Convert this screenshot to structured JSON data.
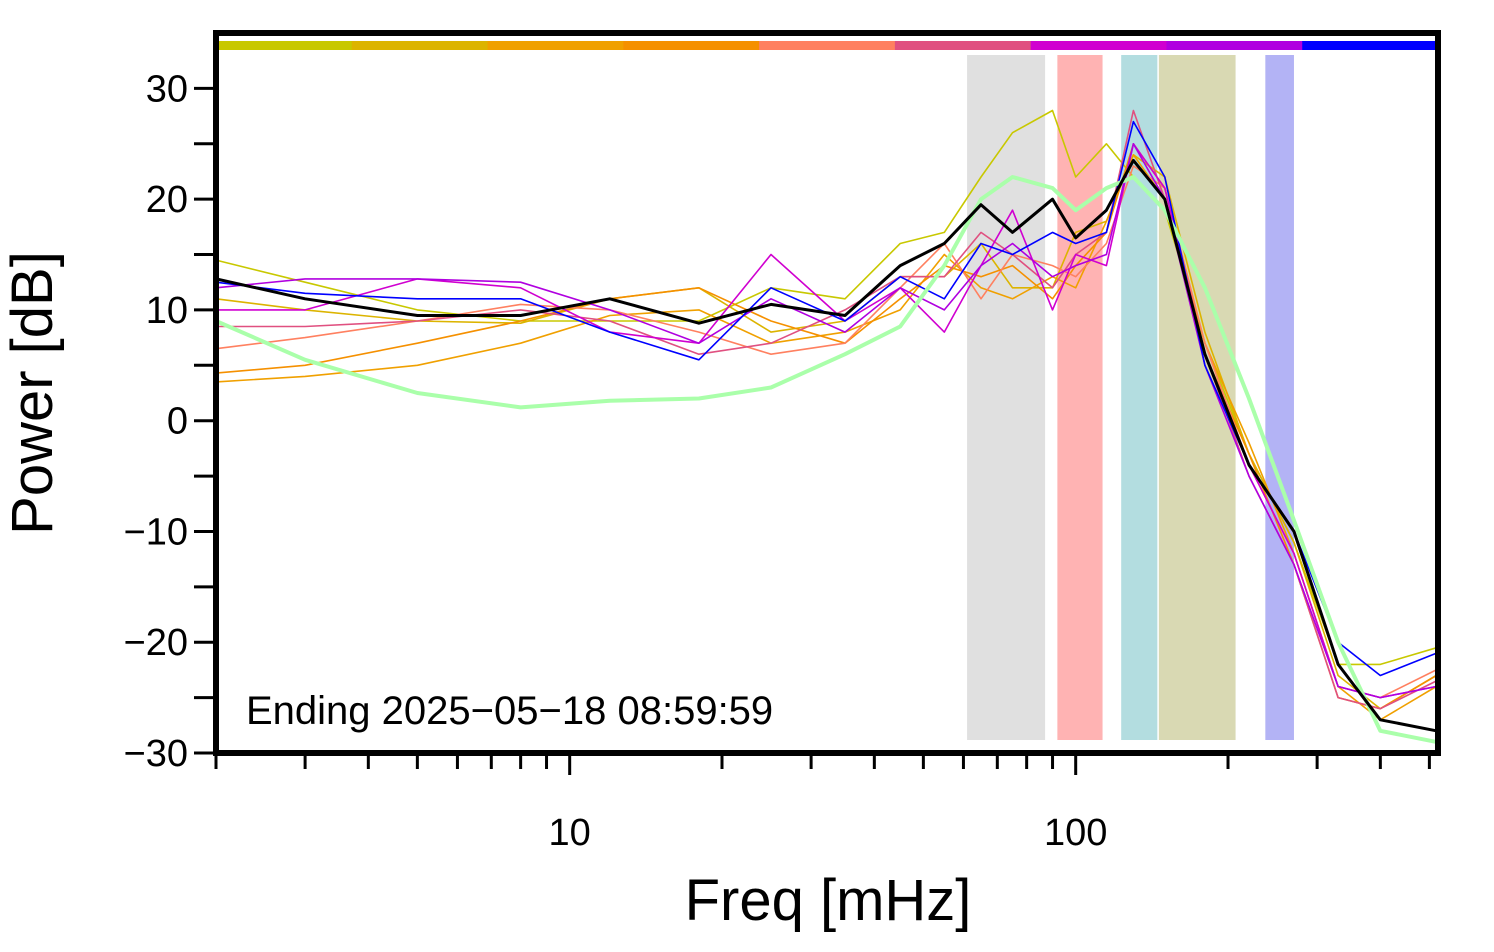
{
  "chart_data": {
    "type": "line",
    "x_label": "Freq [mHz]",
    "y_label": "Power [dB]",
    "annotation": "Ending 2025−05−18 08:59:59",
    "x_log": true,
    "xlim": [
      2,
      520
    ],
    "xticks": [
      10,
      100
    ],
    "xminor_ticks": [
      2,
      3,
      4,
      5,
      6,
      7,
      8,
      9,
      20,
      30,
      40,
      50,
      60,
      70,
      80,
      90,
      200,
      300,
      400,
      500
    ],
    "ylim": [
      -30,
      35
    ],
    "yticks": [
      {
        "value": -30,
        "label": "−30"
      },
      {
        "value": -20,
        "label": "−20"
      },
      {
        "value": -10,
        "label": "−10"
      },
      0,
      10,
      20,
      30
    ],
    "yminor_ticks": [
      -25,
      -15,
      -5,
      5,
      15,
      25
    ],
    "bands": [
      {
        "x0": 61,
        "x1": 87,
        "color": "#e0e0e0"
      },
      {
        "x0": 92,
        "x1": 113,
        "color": "#ffb3b3"
      },
      {
        "x0": 123,
        "x1": 145,
        "color": "#b3dde0"
      },
      {
        "x0": 146,
        "x1": 207,
        "color": "#d9d9b3"
      },
      {
        "x0": 237,
        "x1": 270,
        "color": "#b3b3f5"
      }
    ],
    "x": [
      2,
      3,
      5,
      8,
      12,
      18,
      25,
      35,
      45,
      55,
      65,
      75,
      90,
      100,
      115,
      130,
      150,
      180,
      220,
      270,
      330,
      400,
      516
    ],
    "series": [
      {
        "color": "#c8c800",
        "values": [
          14.5,
          12.5,
          10,
          9,
          9,
          9,
          12,
          11,
          16,
          17,
          22,
          26,
          28,
          22,
          25,
          22,
          19,
          7,
          -3,
          -11,
          -22,
          -22,
          -20.5
        ]
      },
      {
        "color": "#dcb400",
        "values": [
          11,
          10,
          9,
          8.8,
          11,
          12,
          8,
          9,
          13,
          13,
          16,
          12,
          12,
          17,
          18,
          24,
          22,
          8,
          -3,
          -11,
          -23,
          -26,
          -23
        ]
      },
      {
        "color": "#f0a000",
        "values": [
          3.5,
          4,
          5,
          7,
          9.5,
          10,
          7,
          8,
          10,
          15,
          12,
          11,
          13,
          12,
          18,
          24,
          20,
          7,
          -2,
          -12,
          -24,
          -27,
          -24
        ]
      },
      {
        "color": "#f59000",
        "values": [
          4.3,
          5,
          7,
          9,
          11,
          12,
          9,
          7,
          11,
          14,
          13,
          14,
          11,
          14,
          17,
          25,
          21,
          6,
          -3,
          -13,
          -25,
          -26,
          -23
        ]
      },
      {
        "color": "#ff8060",
        "values": [
          6.5,
          7.5,
          9,
          10.5,
          10,
          8,
          6,
          7,
          12,
          16,
          11,
          15,
          14,
          13,
          16,
          23,
          21,
          7,
          -4,
          -12,
          -24,
          -25,
          -22.5
        ]
      },
      {
        "color": "#e05080",
        "values": [
          8.5,
          8.5,
          9,
          10,
          9,
          6,
          7,
          10,
          13,
          13,
          17,
          15,
          12,
          15,
          17,
          28,
          20,
          6,
          -5,
          -13,
          -25,
          -26,
          -23.5
        ]
      },
      {
        "color": "#d000d0",
        "values": [
          10,
          10,
          12.8,
          12,
          8,
          7,
          15,
          9,
          12,
          8,
          14,
          19,
          10,
          15,
          14,
          25,
          21,
          6,
          -4,
          -12,
          -24,
          -25,
          -24
        ]
      },
      {
        "color": "#b000e0",
        "values": [
          12,
          12.8,
          12.8,
          12.5,
          10,
          7,
          11,
          8,
          12,
          10,
          14,
          16,
          13,
          14,
          15,
          25,
          20,
          5,
          -5,
          -13,
          -24,
          -25,
          -24
        ]
      },
      {
        "color": "#0000ff",
        "values": [
          12.5,
          11.5,
          11,
          11,
          8,
          5.5,
          12,
          9,
          13,
          11,
          16,
          15,
          17,
          16,
          17,
          27,
          22,
          5,
          -4,
          -10,
          -20,
          -23,
          -21
        ]
      },
      {
        "color": "#aaffaa",
        "values": [
          9,
          5.5,
          2.5,
          1.2,
          1.8,
          2,
          3,
          6,
          8.5,
          14,
          20,
          22,
          21,
          19,
          21,
          22,
          19,
          12,
          2,
          -9,
          -20,
          -28,
          -29
        ]
      },
      {
        "color": "#000000",
        "values": [
          12.8,
          11,
          9.5,
          9.5,
          11,
          8.8,
          10.5,
          9.5,
          14,
          16,
          19.5,
          17,
          20,
          16.5,
          19,
          23.5,
          20,
          6,
          -4,
          -10,
          -22,
          -27,
          -28
        ]
      }
    ]
  }
}
